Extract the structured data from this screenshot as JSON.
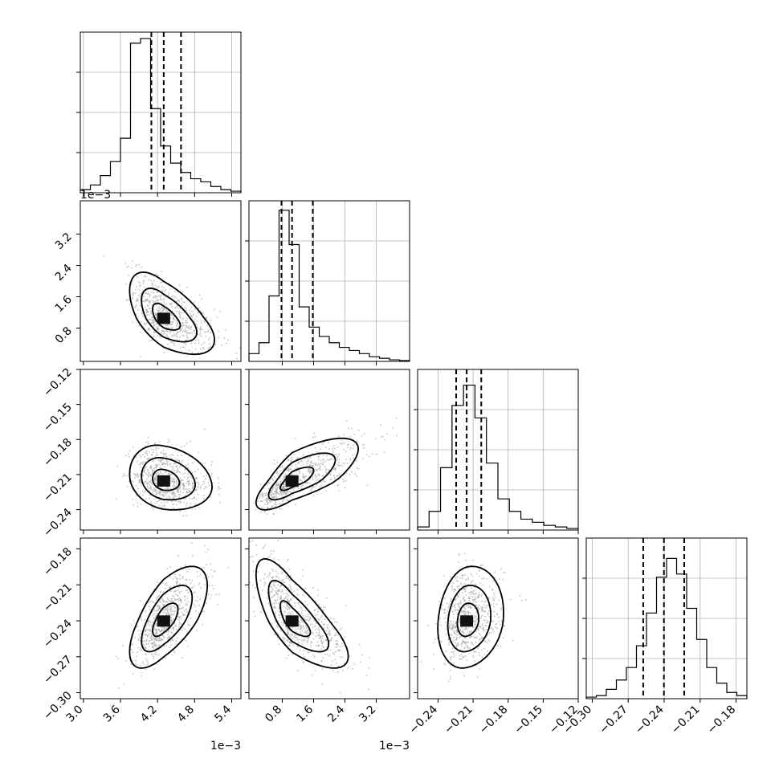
{
  "chart_data": {
    "type": "corner",
    "parameters": [
      {
        "range": [
          0.00295,
          0.00555
        ],
        "ticks": [
          0.003,
          0.0036,
          0.0042,
          0.0048,
          0.0054
        ],
        "tick_labels": [
          "3.0",
          "3.6",
          "4.2",
          "4.8",
          "5.4"
        ],
        "offset_text": "1e−3",
        "quantiles": [
          0.0041,
          0.0043,
          0.00458
        ],
        "histogram": [
          0.02,
          0.05,
          0.11,
          0.2,
          0.35,
          0.96,
          0.99,
          0.54,
          0.3,
          0.19,
          0.13,
          0.09,
          0.07,
          0.04,
          0.02,
          0.01
        ]
      },
      {
        "range": [
          -5e-05,
          0.00405
        ],
        "ticks": [
          0.0008,
          0.0016,
          0.0024,
          0.0032
        ],
        "tick_labels": [
          "0.8",
          "1.6",
          "2.4",
          "3.2"
        ],
        "offset_text": "1e−3",
        "quantiles": [
          0.00078,
          0.00105,
          0.00158
        ],
        "histogram": [
          0.05,
          0.12,
          0.42,
          0.97,
          0.75,
          0.35,
          0.22,
          0.16,
          0.12,
          0.09,
          0.07,
          0.05,
          0.03,
          0.02,
          0.01,
          0.005
        ]
      },
      {
        "range": [
          -0.2575,
          -0.12
        ],
        "ticks": [
          -0.24,
          -0.21,
          -0.18,
          -0.15,
          -0.12
        ],
        "tick_labels": [
          "−0.24",
          "−0.21",
          "−0.18",
          "−0.15",
          "−0.12"
        ],
        "quantiles": [
          -0.2245,
          -0.2155,
          -0.203
        ],
        "histogram": [
          0.02,
          0.12,
          0.4,
          0.8,
          0.93,
          0.72,
          0.43,
          0.2,
          0.12,
          0.07,
          0.05,
          0.03,
          0.02,
          0.01
        ]
      },
      {
        "range": [
          -0.305,
          -0.171
        ],
        "ticks": [
          -0.3,
          -0.27,
          -0.24,
          -0.21,
          -0.18
        ],
        "tick_labels": [
          "−0.30",
          "−0.27",
          "−0.24",
          "−0.21",
          "−0.18"
        ],
        "quantiles": [
          -0.2575,
          -0.2402,
          -0.2233
        ],
        "histogram": [
          0.01,
          0.02,
          0.06,
          0.12,
          0.2,
          0.34,
          0.55,
          0.78,
          0.9,
          0.8,
          0.58,
          0.38,
          0.2,
          0.1,
          0.04,
          0.02
        ]
      }
    ],
    "pairs": [
      {
        "x": 0,
        "y": 1,
        "rho": -0.6,
        "skew": 0.35,
        "levels": [
          [
            0.0041,
            0.0
          ],
          [
            0.00444,
            0.00094
          ],
          [
            0.004,
            0.0012
          ],
          [
            0.004,
            0.0006
          ],
          [
            0.00446,
            0.00063
          ],
          [
            0.00428,
            0.00061
          ],
          [
            0.00453,
            0.00104
          ],
          [
            0.00472,
            0.00061
          ],
          [
            0.0041,
            0.001
          ],
          [
            0.004,
            0.0023
          ],
          [
            0.00488,
            0.0012
          ],
          [
            0.0051,
            0.0012
          ]
        ]
      },
      {
        "x": 0,
        "y": 2,
        "rho": -0.2,
        "skew": 0.3,
        "levels": [
          [
            0.0043,
            -0.226
          ],
          [
            0.00448,
            -0.211
          ],
          [
            0.00432,
            -0.229
          ],
          [
            0.00466,
            -0.225
          ],
          [
            0.00404,
            -0.205
          ],
          [
            0.00474,
            -0.19
          ]
        ]
      },
      {
        "x": 1,
        "y": 2,
        "rho": 0.75,
        "skew": 0.6,
        "levels": [
          [
            0.0007,
            -0.228
          ],
          [
            0.0011,
            -0.211
          ],
          [
            0.00064,
            -0.235
          ],
          [
            0.0013,
            -0.193
          ],
          [
            0.00043,
            -0.236
          ],
          [
            0.00235,
            -0.18
          ]
        ]
      },
      {
        "x": 0,
        "y": 3,
        "rho": 0.65,
        "skew": 0.2,
        "levels": [
          [
            0.00423,
            -0.254
          ],
          [
            0.00442,
            -0.223
          ],
          [
            0.00405,
            -0.262
          ],
          [
            0.0046,
            -0.21
          ],
          [
            0.0039,
            -0.275
          ],
          [
            0.0048,
            -0.2
          ]
        ]
      },
      {
        "x": 1,
        "y": 3,
        "rho": -0.75,
        "skew": 0.4,
        "levels": [
          [
            0.0008,
            -0.235
          ],
          [
            0.0012,
            -0.255
          ],
          [
            0.0006,
            -0.22
          ],
          [
            0.0018,
            -0.26
          ],
          [
            0.0005,
            -0.205
          ],
          [
            0.0024,
            -0.26
          ]
        ]
      },
      {
        "x": 2,
        "y": 3,
        "rho": 0.15,
        "skew": 0.2,
        "levels": [
          [
            -0.23,
            -0.25
          ],
          [
            -0.21,
            -0.22
          ],
          [
            -0.24,
            -0.26
          ],
          [
            -0.195,
            -0.212
          ],
          [
            -0.25,
            -0.275
          ],
          [
            -0.18,
            -0.2
          ]
        ]
      }
    ]
  }
}
